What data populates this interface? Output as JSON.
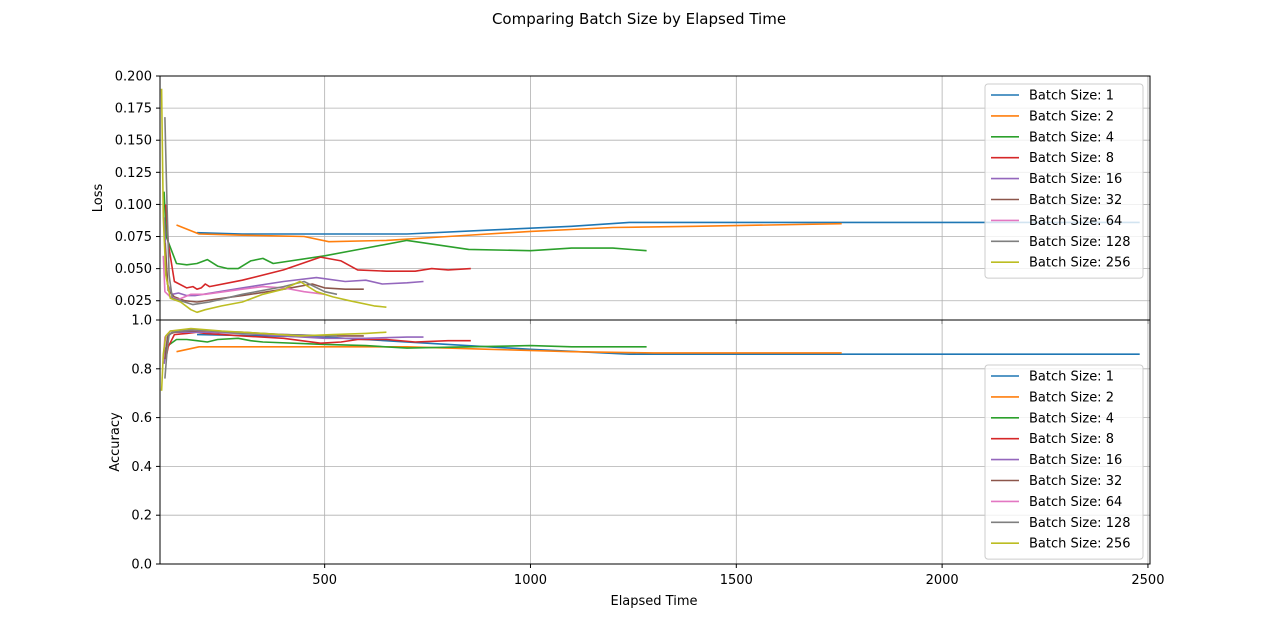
{
  "chart_data": {
    "type": "line",
    "title": "Comparing Batch Size by Elapsed Time",
    "xlabel": "Elapsed Time",
    "xlim": [
      100,
      2505
    ],
    "xticks": [
      500,
      1000,
      1500,
      2000,
      2500
    ],
    "grid": true,
    "legend_placement_top": "top-right",
    "legend_placement_bottom": "lower-right",
    "series_colors": [
      "#1f77b4",
      "#ff7f0e",
      "#2ca02c",
      "#d62728",
      "#9467bd",
      "#8c564b",
      "#e377c2",
      "#7f7f7f",
      "#bcbd22"
    ],
    "panels": [
      {
        "name": "loss",
        "ylabel": "Loss",
        "ylim": [
          0.01,
          0.2
        ],
        "yticks": [
          "0.025",
          "0.050",
          "0.075",
          "0.100",
          "0.125",
          "0.150",
          "0.175",
          "0.200"
        ],
        "yticks_values": [
          0.025,
          0.05,
          0.075,
          0.1,
          0.125,
          0.15,
          0.175,
          0.2
        ],
        "series": [
          {
            "name": "Batch Size: 1",
            "x": [
              190,
              300,
              500,
              700,
              900,
              1100,
              1240,
              1500,
              2000,
              2480
            ],
            "y": [
              0.078,
              0.077,
              0.077,
              0.077,
              0.08,
              0.083,
              0.086,
              0.086,
              0.086,
              0.086
            ]
          },
          {
            "name": "Batch Size: 2",
            "x": [
              140,
              195,
              300,
              450,
              510,
              650,
              800,
              1000,
              1200,
              1400,
              1756
            ],
            "y": [
              0.084,
              0.077,
              0.076,
              0.075,
              0.071,
              0.072,
              0.075,
              0.079,
              0.082,
              0.083,
              0.085
            ]
          },
          {
            "name": "Batch Size: 4",
            "x": [
              110,
              115,
              140,
              165,
              190,
              215,
              240,
              265,
              290,
              320,
              350,
              375,
              500,
              600,
              700,
              850,
              1000,
              1100,
              1200,
              1282
            ],
            "y": [
              0.11,
              0.075,
              0.054,
              0.053,
              0.054,
              0.057,
              0.052,
              0.05,
              0.05,
              0.056,
              0.058,
              0.054,
              0.06,
              0.066,
              0.072,
              0.065,
              0.064,
              0.066,
              0.066,
              0.064
            ]
          },
          {
            "name": "Batch Size: 8",
            "x": [
              114,
              120,
              135,
              165,
              180,
              190,
              200,
              210,
              220,
              300,
              400,
              490,
              540,
              580,
              650,
              720,
              760,
              800,
              855
            ],
            "y": [
              0.1,
              0.07,
              0.04,
              0.035,
              0.036,
              0.034,
              0.035,
              0.038,
              0.036,
              0.041,
              0.049,
              0.059,
              0.056,
              0.049,
              0.048,
              0.048,
              0.05,
              0.049,
              0.05
            ]
          },
          {
            "name": "Batch Size: 16",
            "x": [
              110,
              118,
              130,
              145,
              165,
              185,
              205,
              300,
              400,
              480,
              550,
              600,
              640,
              700,
              740
            ],
            "y": [
              0.09,
              0.038,
              0.03,
              0.031,
              0.029,
              0.029,
              0.03,
              0.035,
              0.04,
              0.043,
              0.04,
              0.041,
              0.038,
              0.039,
              0.04
            ]
          },
          {
            "name": "Batch Size: 32",
            "x": [
              112,
              120,
              135,
              160,
              190,
              230,
              300,
              400,
              470,
              500,
              550,
              595
            ],
            "y": [
              0.07,
              0.033,
              0.028,
              0.025,
              0.024,
              0.026,
              0.029,
              0.034,
              0.038,
              0.035,
              0.034,
              0.034
            ]
          },
          {
            "name": "Batch Size: 64",
            "x": [
              108,
              112,
              125,
              145,
              175,
              210,
              300,
              350,
              400,
              450,
              500
            ],
            "y": [
              0.06,
              0.032,
              0.028,
              0.026,
              0.03,
              0.03,
              0.034,
              0.036,
              0.035,
              0.032,
              0.03
            ]
          },
          {
            "name": "Batch Size: 128",
            "x": [
              112,
              117,
              122,
              130,
              150,
              180,
              220,
              300,
              400,
              450,
              500,
              530
            ],
            "y": [
              0.168,
              0.1,
              0.045,
              0.027,
              0.025,
              0.022,
              0.024,
              0.03,
              0.036,
              0.04,
              0.032,
              0.03
            ]
          },
          {
            "name": "Batch Size: 256",
            "x": [
              104,
              108,
              114,
              125,
              150,
              175,
              190,
              210,
              250,
              300,
              350,
              400,
              440,
              480,
              520,
              560,
              620,
              650
            ],
            "y": [
              0.19,
              0.09,
              0.045,
              0.027,
              0.024,
              0.018,
              0.016,
              0.018,
              0.021,
              0.024,
              0.03,
              0.034,
              0.04,
              0.032,
              0.028,
              0.025,
              0.021,
              0.02
            ]
          }
        ]
      },
      {
        "name": "accuracy",
        "ylabel": "Accuracy",
        "ylim": [
          0.0,
          1.0
        ],
        "yticks": [
          "0.0",
          "0.2",
          "0.4",
          "0.6",
          "0.8",
          "1.0"
        ],
        "yticks_values": [
          0.0,
          0.2,
          0.4,
          0.6,
          0.8,
          1.0
        ],
        "series": [
          {
            "name": "Batch Size: 1",
            "x": [
              190,
              500,
              800,
              1000,
              1240,
              1500,
              1756,
              2000,
              2480
            ],
            "y": [
              0.94,
              0.93,
              0.9,
              0.88,
              0.86,
              0.86,
              0.86,
              0.86,
              0.86
            ]
          },
          {
            "name": "Batch Size: 2",
            "x": [
              140,
              195,
              300,
              500,
              700,
              900,
              1100,
              1300,
              1500,
              1756
            ],
            "y": [
              0.87,
              0.89,
              0.89,
              0.89,
              0.89,
              0.88,
              0.87,
              0.865,
              0.865,
              0.865
            ]
          },
          {
            "name": "Batch Size: 4",
            "x": [
              110,
              115,
              140,
              165,
              190,
              215,
              240,
              290,
              320,
              350,
              500,
              600,
              700,
              850,
              1000,
              1100,
              1200,
              1282
            ],
            "y": [
              0.86,
              0.89,
              0.92,
              0.92,
              0.915,
              0.91,
              0.92,
              0.925,
              0.915,
              0.91,
              0.9,
              0.895,
              0.885,
              0.89,
              0.895,
              0.89,
              0.89,
              0.89
            ]
          },
          {
            "name": "Batch Size: 8",
            "x": [
              114,
              120,
              135,
              165,
              190,
              210,
              300,
              400,
              490,
              540,
              580,
              650,
              720,
              800,
              855
            ],
            "y": [
              0.84,
              0.89,
              0.94,
              0.945,
              0.95,
              0.945,
              0.935,
              0.925,
              0.905,
              0.91,
              0.92,
              0.92,
              0.91,
              0.915,
              0.915
            ]
          },
          {
            "name": "Batch Size: 16",
            "x": [
              110,
              118,
              130,
              165,
              205,
              300,
              400,
              500,
              600,
              700,
              740
            ],
            "y": [
              0.82,
              0.93,
              0.95,
              0.95,
              0.95,
              0.945,
              0.935,
              0.925,
              0.925,
              0.93,
              0.93
            ]
          },
          {
            "name": "Batch Size: 32",
            "x": [
              112,
              120,
              135,
              160,
              190,
              300,
              400,
              500,
              595
            ],
            "y": [
              0.84,
              0.94,
              0.95,
              0.955,
              0.955,
              0.95,
              0.94,
              0.935,
              0.935
            ]
          },
          {
            "name": "Batch Size: 64",
            "x": [
              108,
              112,
              125,
              175,
              210,
              300,
              400,
              500
            ],
            "y": [
              0.84,
              0.93,
              0.955,
              0.96,
              0.955,
              0.945,
              0.94,
              0.935
            ]
          },
          {
            "name": "Batch Size: 128",
            "x": [
              112,
              117,
              122,
              130,
              180,
              300,
              400,
              530
            ],
            "y": [
              0.76,
              0.87,
              0.94,
              0.95,
              0.96,
              0.945,
              0.94,
              0.935
            ]
          },
          {
            "name": "Batch Size: 256",
            "x": [
              104,
              108,
              114,
              125,
              175,
              250,
              350,
              440,
              520,
              600,
              650
            ],
            "y": [
              0.71,
              0.86,
              0.935,
              0.955,
              0.965,
              0.955,
              0.945,
              0.935,
              0.94,
              0.945,
              0.95
            ]
          }
        ]
      }
    ]
  }
}
